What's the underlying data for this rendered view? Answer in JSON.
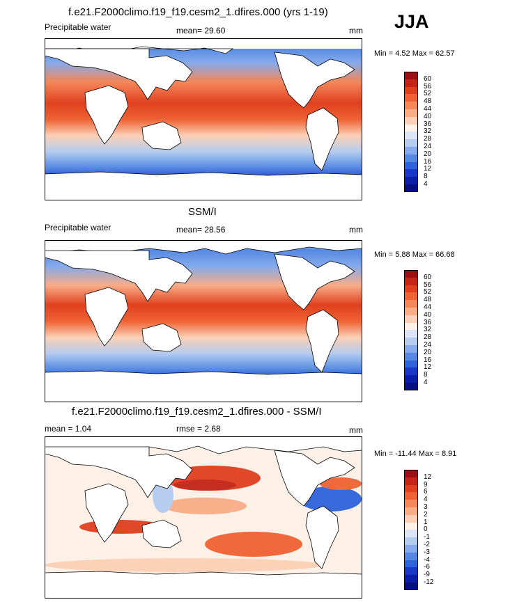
{
  "season": "JJA",
  "panels": [
    {
      "title": "f.e21.F2000climo.f19_f19.cesm2_1.dfires.000 (yrs 1-19)",
      "left_label": "Precipitable water",
      "mean_text": "mean=  29.60",
      "units": "mm",
      "minmax": "Min =   4.52 Max =  62.57",
      "colorbar_labels": [
        "60",
        "56",
        "52",
        "48",
        "44",
        "40",
        "36",
        "32",
        "28",
        "24",
        "20",
        "16",
        "12",
        "8",
        "4"
      ],
      "colorbar_colors": [
        "#9c0f13",
        "#c42418",
        "#e0401f",
        "#ef6233",
        "#f5875a",
        "#f9ac86",
        "#fbd0b6",
        "#fdf0e6",
        "#dbe5f7",
        "#b3ccf0",
        "#84aaeb",
        "#5488e3",
        "#2e63db",
        "#1838c8",
        "#0a1ea8",
        "#081080"
      ]
    },
    {
      "title": "SSM/I",
      "left_label": "Precipitable water",
      "mean_text": "mean=  28.56",
      "units": "mm",
      "minmax": "Min =   5.88 Max =  66.68",
      "colorbar_labels": [
        "60",
        "56",
        "52",
        "48",
        "44",
        "40",
        "36",
        "32",
        "28",
        "24",
        "20",
        "16",
        "12",
        "8",
        "4"
      ],
      "colorbar_colors": [
        "#9c0f13",
        "#c42418",
        "#e0401f",
        "#ef6233",
        "#f5875a",
        "#f9ac86",
        "#fbd0b6",
        "#fdf0e6",
        "#dbe5f7",
        "#b3ccf0",
        "#84aaeb",
        "#5488e3",
        "#2e63db",
        "#1838c8",
        "#0a1ea8",
        "#081080"
      ]
    },
    {
      "title": "f.e21.F2000climo.f19_f19.cesm2_1.dfires.000 - SSM/I",
      "left_label": "mean =   1.04",
      "mean_text": "rmse =   2.68",
      "units": "mm",
      "minmax": "Min = -11.44 Max =   8.91",
      "colorbar_labels": [
        "12",
        "9",
        "6",
        "4",
        "3",
        "2",
        "1",
        "0",
        "-1",
        "-2",
        "-3",
        "-4",
        "-6",
        "-9",
        "-12"
      ],
      "colorbar_colors": [
        "#9c0f13",
        "#c42418",
        "#e0401f",
        "#ef6233",
        "#f5875a",
        "#f9ac86",
        "#fbd0b6",
        "#fdf0e6",
        "#dbe5f7",
        "#b3ccf0",
        "#84aaeb",
        "#5488e3",
        "#2e63db",
        "#1838c8",
        "#0a1ea8",
        "#081080"
      ]
    }
  ]
}
